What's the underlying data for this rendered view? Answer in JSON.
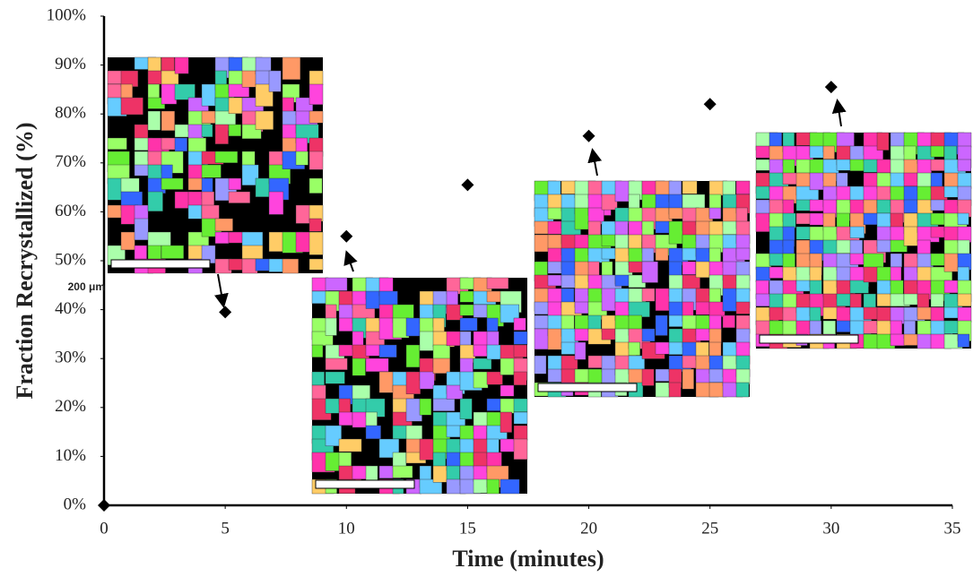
{
  "chart_data": {
    "type": "scatter",
    "x_label": "Time (minutes)",
    "y_label": "Fraction Recrystallized (%)",
    "x": [
      0,
      5,
      10,
      15,
      20,
      25,
      30
    ],
    "values": [
      0,
      39.5,
      55,
      65.5,
      75.5,
      82,
      85.5
    ],
    "color": "#000000",
    "marker": "diamond",
    "xlim": [
      0,
      35
    ],
    "xticks": [
      0,
      5,
      10,
      15,
      20,
      25,
      30,
      35
    ],
    "ylim": [
      0,
      100
    ],
    "yticks": [
      {
        "value": 0,
        "label": "0%"
      },
      {
        "value": 10,
        "label": "10%"
      },
      {
        "value": 20,
        "label": "20%"
      },
      {
        "value": 30,
        "label": "30%"
      },
      {
        "value": 40,
        "label": "40%"
      },
      {
        "value": 50,
        "label": "50%"
      },
      {
        "value": 60,
        "label": "60%"
      },
      {
        "value": 70,
        "label": "70%"
      },
      {
        "value": 80,
        "label": "80%"
      },
      {
        "value": 90,
        "label": "90%"
      },
      {
        "value": 100,
        "label": "100%"
      }
    ],
    "grid": false,
    "scale_label": "200 μm"
  }
}
